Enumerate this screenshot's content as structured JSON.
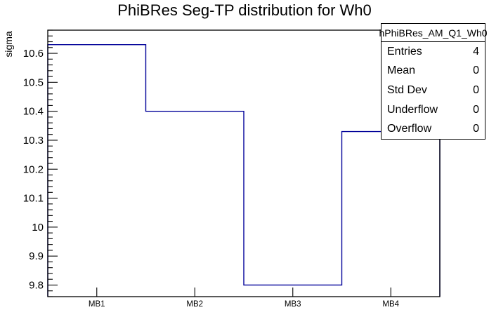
{
  "page": {
    "background": "#ffffff"
  },
  "chart_data": {
    "type": "bar",
    "style": "step-histogram-outline",
    "title": "PhiBRes Seg-TP distribution for Wh0",
    "categories": [
      "MB1",
      "MB2",
      "MB3",
      "MB4"
    ],
    "values": [
      10.63,
      10.4,
      9.8,
      10.33
    ],
    "xlabel": "",
    "ylabel": "sigma",
    "ylim": [
      9.76,
      10.68
    ],
    "y_major_ticks": [
      9.8,
      9.9,
      10,
      10.1,
      10.2,
      10.3,
      10.4,
      10.5,
      10.6
    ],
    "y_tick_labels": [
      "9.8",
      "9.9",
      "10",
      "10.1",
      "10.2",
      "10.3",
      "10.4",
      "10.5",
      "10.6"
    ],
    "y_minor_tick_step": 0.02,
    "grid": false,
    "legend_position": "none",
    "line_color": "#000099",
    "axis_color": "#000000"
  },
  "stats_box": {
    "header": "hPhiBRes_AM_Q1_Wh0",
    "rows": [
      {
        "label": "Entries",
        "value": "4"
      },
      {
        "label": "Mean",
        "value": "0"
      },
      {
        "label": "Std Dev",
        "value": "0"
      },
      {
        "label": "Underflow",
        "value": "0"
      },
      {
        "label": "Overflow",
        "value": "0"
      }
    ]
  }
}
